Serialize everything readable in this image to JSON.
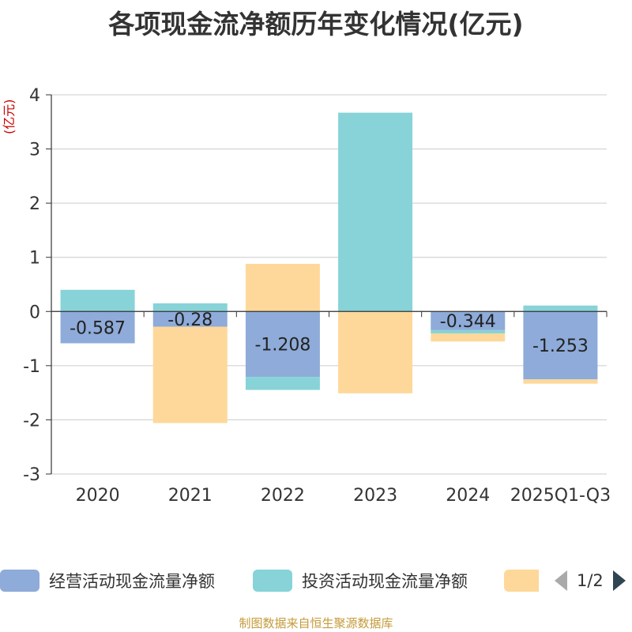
{
  "chart_data": {
    "type": "bar",
    "stacked": true,
    "title": "各项现金流净额历年变化情况(亿元)",
    "ylabel": "(亿元)",
    "ylim": [
      -3,
      4
    ],
    "yticks": [
      4,
      3,
      2,
      1,
      0,
      -1,
      -2,
      -3
    ],
    "grid": true,
    "legend_position": "bottom",
    "categories": [
      "2020",
      "2021",
      "2022",
      "2023",
      "2024",
      "2025Q1-Q3"
    ],
    "series": [
      {
        "name": "经营活动现金流量净额",
        "color": "#8eabd9",
        "values": [
          -0.587,
          -0.28,
          -1.208,
          0.0,
          -0.344,
          -1.253
        ],
        "labels": [
          "-0.587",
          "-0.28",
          "-1.208",
          "",
          "-0.344",
          "-1.253"
        ]
      },
      {
        "name": "投资活动现金流量净额",
        "color": "#87d3d8",
        "values": [
          0.4,
          0.15,
          -0.24,
          3.67,
          -0.06,
          0.11
        ]
      },
      {
        "name": "",
        "color": "#fed89a",
        "values": [
          0.0,
          -1.78,
          0.88,
          -1.51,
          -0.15,
          -0.08
        ]
      }
    ],
    "pager": {
      "current": 1,
      "total": 2
    }
  },
  "legend": {
    "items": [
      {
        "label": "经营活动现金流量净额",
        "color": "#8eabd9"
      },
      {
        "label": "投资活动现金流量净额",
        "color": "#87d3d8"
      },
      {
        "label": "",
        "color": "#fed89a"
      }
    ],
    "pager_text": "1/2"
  },
  "footer": {
    "source": "制图数据来自恒生聚源数据库"
  }
}
